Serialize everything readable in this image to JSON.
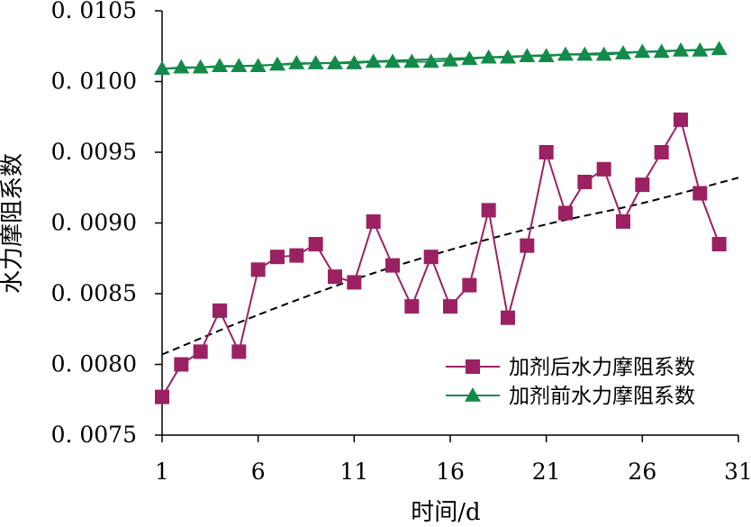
{
  "chart_data": {
    "type": "line",
    "title": "",
    "xlabel": "时间/d",
    "ylabel": "水力摩阻系数",
    "xlim": [
      1,
      31
    ],
    "ylim": [
      0.0075,
      0.0105
    ],
    "x_ticks": [
      1,
      6,
      11,
      16,
      21,
      26,
      31
    ],
    "y_ticks": [
      0.0075,
      0.008,
      0.0085,
      0.009,
      0.0095,
      0.01,
      0.0105
    ],
    "y_tick_labels": [
      "0. 0075",
      "0. 0080",
      "0. 0085",
      "0. 0090",
      "0. 0095",
      "0. 0100",
      "0. 0105"
    ],
    "grid": false,
    "legend_position": "bottom-right",
    "series": [
      {
        "name": "加剂后水力摩阻系数",
        "color": "#9b2163",
        "marker": "square",
        "x": [
          1,
          2,
          3,
          4,
          5,
          6,
          7,
          8,
          9,
          10,
          11,
          12,
          13,
          14,
          15,
          16,
          17,
          18,
          19,
          20,
          21,
          22,
          23,
          24,
          25,
          26,
          27,
          28,
          29,
          30
        ],
        "values": [
          0.00777,
          0.008,
          0.00809,
          0.00838,
          0.00809,
          0.00867,
          0.00876,
          0.00877,
          0.00885,
          0.00862,
          0.00858,
          0.00901,
          0.0087,
          0.00841,
          0.00876,
          0.00841,
          0.00856,
          0.00909,
          0.00833,
          0.00884,
          0.0095,
          0.00907,
          0.00929,
          0.00938,
          0.00901,
          0.00927,
          0.0095,
          0.00973,
          0.00921,
          0.00885
        ]
      },
      {
        "name": "加剂前水力摩阻系数",
        "color": "#138a4a",
        "marker": "triangle",
        "x": [
          1,
          2,
          3,
          4,
          5,
          6,
          7,
          8,
          9,
          10,
          11,
          12,
          13,
          14,
          15,
          16,
          17,
          18,
          19,
          20,
          21,
          22,
          23,
          24,
          25,
          26,
          27,
          28,
          29,
          30
        ],
        "values": [
          0.01009,
          0.0101,
          0.0101,
          0.01011,
          0.01011,
          0.01011,
          0.01012,
          0.01013,
          0.01013,
          0.01013,
          0.01013,
          0.01014,
          0.01014,
          0.01014,
          0.01014,
          0.01015,
          0.01016,
          0.01017,
          0.01017,
          0.01018,
          0.01018,
          0.01019,
          0.01019,
          0.01019,
          0.0102,
          0.01021,
          0.01021,
          0.01022,
          0.01022,
          0.01023
        ]
      }
    ],
    "trendlines": [
      {
        "type": "dashed",
        "color": "#000000",
        "x": [
          1,
          6,
          11,
          16,
          21,
          26,
          31
        ],
        "values": [
          0.00807,
          0.00835,
          0.0086,
          0.00881,
          0.00899,
          0.00914,
          0.00932
        ]
      },
      {
        "type": "solid",
        "color": "#138a4a",
        "x": [
          1,
          30
        ],
        "values": [
          0.01009,
          0.01023
        ]
      }
    ]
  }
}
